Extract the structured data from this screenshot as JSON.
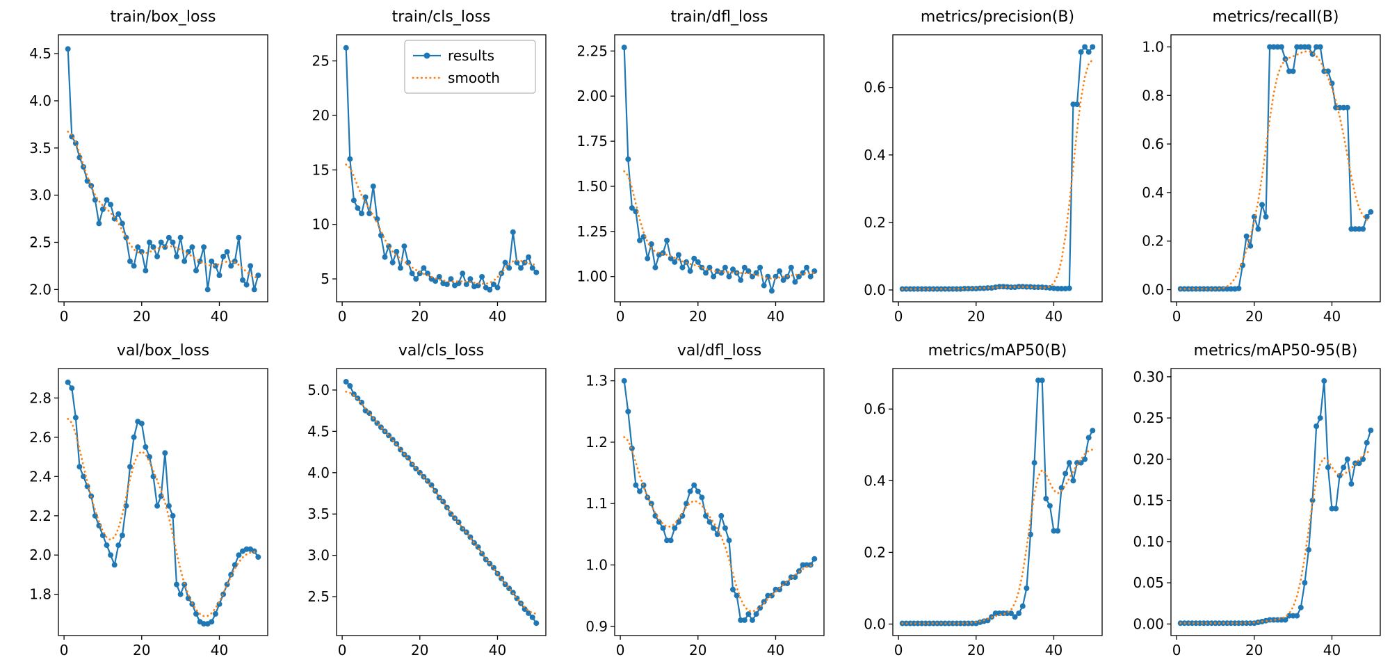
{
  "figure": {
    "background": "#ffffff",
    "rows": 2,
    "columns": 5
  },
  "colors": {
    "results": "#1f77b4",
    "smooth": "#ff7f0e",
    "axis": "#000000",
    "legend_border": "#b3b3b3"
  },
  "legend": {
    "results_label": "results",
    "smooth_label": "smooth"
  },
  "chart_data": [
    {
      "type": "line",
      "title": "train/box_loss",
      "legend": false,
      "x_start": 1,
      "xlim": [
        -1.45,
        52.45
      ],
      "xticks": [
        0,
        20,
        40
      ],
      "xtick_labels": [
        "0",
        "20",
        "40"
      ],
      "ylim": [
        1.87,
        4.7
      ],
      "yticks": [
        2.0,
        2.5,
        3.0,
        3.5,
        4.0,
        4.5
      ],
      "ytick_labels": [
        "2.0",
        "2.5",
        "3.0",
        "3.5",
        "4.0",
        "4.5"
      ],
      "series": [
        {
          "name": "results",
          "style": "line-marker",
          "values": [
            4.55,
            3.62,
            3.55,
            3.4,
            3.3,
            3.15,
            3.1,
            2.95,
            2.7,
            2.85,
            2.95,
            2.9,
            2.75,
            2.8,
            2.7,
            2.55,
            2.3,
            2.25,
            2.45,
            2.4,
            2.2,
            2.5,
            2.45,
            2.35,
            2.5,
            2.45,
            2.55,
            2.5,
            2.35,
            2.55,
            2.3,
            2.4,
            2.45,
            2.2,
            2.3,
            2.45,
            2.0,
            2.3,
            2.25,
            2.15,
            2.35,
            2.4,
            2.25,
            2.3,
            2.55,
            2.1,
            2.05,
            2.25,
            2.0,
            2.15
          ]
        },
        {
          "name": "smooth",
          "style": "dotted",
          "derived_from": "results"
        }
      ]
    },
    {
      "type": "line",
      "title": "train/cls_loss",
      "legend": true,
      "x_start": 1,
      "xlim": [
        -1.45,
        52.45
      ],
      "xticks": [
        0,
        20,
        40
      ],
      "xtick_labels": [
        "0",
        "20",
        "40"
      ],
      "ylim": [
        2.9,
        27.4
      ],
      "yticks": [
        5,
        10,
        15,
        20,
        25
      ],
      "ytick_labels": [
        "5",
        "10",
        "15",
        "20",
        "25"
      ],
      "series": [
        {
          "name": "results",
          "style": "line-marker",
          "values": [
            26.2,
            16.0,
            12.2,
            11.5,
            11.0,
            12.5,
            11.0,
            13.5,
            10.5,
            9.0,
            7.0,
            8.0,
            6.5,
            7.5,
            6.0,
            8.0,
            6.5,
            5.5,
            5.0,
            5.5,
            6.0,
            5.5,
            5.0,
            4.8,
            5.2,
            4.6,
            4.5,
            5.0,
            4.4,
            4.6,
            5.5,
            4.5,
            5.0,
            4.3,
            4.4,
            5.2,
            4.2,
            4.0,
            4.5,
            4.2,
            5.5,
            6.5,
            6.0,
            9.3,
            6.5,
            6.0,
            6.5,
            7.0,
            6.0,
            5.6
          ]
        },
        {
          "name": "smooth",
          "style": "dotted",
          "derived_from": "results"
        }
      ]
    },
    {
      "type": "line",
      "title": "train/dfl_loss",
      "legend": false,
      "x_start": 1,
      "xlim": [
        -1.45,
        52.45
      ],
      "xticks": [
        0,
        20,
        40
      ],
      "xtick_labels": [
        "0",
        "20",
        "40"
      ],
      "ylim": [
        0.86,
        2.34
      ],
      "yticks": [
        1.0,
        1.25,
        1.5,
        1.75,
        2.0,
        2.25
      ],
      "ytick_labels": [
        "1.00",
        "1.25",
        "1.50",
        "1.75",
        "2.00",
        "2.25"
      ],
      "series": [
        {
          "name": "results",
          "style": "line-marker",
          "values": [
            2.27,
            1.65,
            1.38,
            1.36,
            1.2,
            1.22,
            1.1,
            1.18,
            1.05,
            1.12,
            1.13,
            1.2,
            1.1,
            1.08,
            1.12,
            1.05,
            1.08,
            1.03,
            1.1,
            1.08,
            1.05,
            1.02,
            1.05,
            1.0,
            1.03,
            1.02,
            1.05,
            1.0,
            1.04,
            1.02,
            0.98,
            1.05,
            1.03,
            1.0,
            1.02,
            1.05,
            0.95,
            1.0,
            0.92,
            1.0,
            1.03,
            0.98,
            1.0,
            1.05,
            0.97,
            1.0,
            1.02,
            1.05,
            1.0,
            1.03
          ]
        },
        {
          "name": "smooth",
          "style": "dotted",
          "derived_from": "results"
        }
      ]
    },
    {
      "type": "line",
      "title": "metrics/precision(B)",
      "legend": false,
      "x_start": 1,
      "xlim": [
        -1.45,
        52.45
      ],
      "xticks": [
        0,
        20,
        40
      ],
      "xtick_labels": [
        "0",
        "20",
        "40"
      ],
      "ylim": [
        -0.035,
        0.756
      ],
      "yticks": [
        0.0,
        0.2,
        0.4,
        0.6
      ],
      "ytick_labels": [
        "0.0",
        "0.2",
        "0.4",
        "0.6"
      ],
      "series": [
        {
          "name": "results",
          "style": "line-marker",
          "values": [
            0.003,
            0.003,
            0.003,
            0.003,
            0.003,
            0.003,
            0.003,
            0.003,
            0.003,
            0.003,
            0.003,
            0.003,
            0.003,
            0.003,
            0.003,
            0.003,
            0.004,
            0.004,
            0.004,
            0.004,
            0.005,
            0.005,
            0.006,
            0.006,
            0.008,
            0.01,
            0.01,
            0.009,
            0.008,
            0.008,
            0.01,
            0.01,
            0.009,
            0.009,
            0.008,
            0.008,
            0.008,
            0.007,
            0.006,
            0.005,
            0.004,
            0.004,
            0.004,
            0.005,
            0.55,
            0.55,
            0.705,
            0.72,
            0.705,
            0.72
          ]
        },
        {
          "name": "smooth",
          "style": "dotted",
          "derived_from": "results"
        }
      ]
    },
    {
      "type": "line",
      "title": "metrics/recall(B)",
      "legend": false,
      "x_start": 1,
      "xlim": [
        -1.45,
        52.45
      ],
      "xticks": [
        0,
        20,
        40
      ],
      "xtick_labels": [
        "0",
        "20",
        "40"
      ],
      "ylim": [
        -0.05,
        1.05
      ],
      "yticks": [
        0.0,
        0.2,
        0.4,
        0.6,
        0.8,
        1.0
      ],
      "ytick_labels": [
        "0.0",
        "0.2",
        "0.4",
        "0.6",
        "0.8",
        "1.0"
      ],
      "series": [
        {
          "name": "results",
          "style": "line-marker",
          "values": [
            0.003,
            0.003,
            0.003,
            0.003,
            0.003,
            0.003,
            0.003,
            0.003,
            0.003,
            0.003,
            0.003,
            0.003,
            0.003,
            0.003,
            0.003,
            0.005,
            0.1,
            0.22,
            0.18,
            0.3,
            0.25,
            0.35,
            0.3,
            1.0,
            1.0,
            1.0,
            1.0,
            0.95,
            0.9,
            0.9,
            1.0,
            1.0,
            1.0,
            1.0,
            0.97,
            1.0,
            1.0,
            0.9,
            0.9,
            0.85,
            0.75,
            0.75,
            0.75,
            0.75,
            0.25,
            0.25,
            0.25,
            0.25,
            0.3,
            0.32
          ]
        },
        {
          "name": "smooth",
          "style": "dotted",
          "derived_from": "results"
        }
      ]
    },
    {
      "type": "line",
      "title": "val/box_loss",
      "legend": false,
      "x_start": 1,
      "xlim": [
        -1.45,
        52.45
      ],
      "xticks": [
        0,
        20,
        40
      ],
      "xtick_labels": [
        "0",
        "20",
        "40"
      ],
      "ylim": [
        1.59,
        2.95
      ],
      "yticks": [
        1.8,
        2.0,
        2.2,
        2.4,
        2.6,
        2.8
      ],
      "ytick_labels": [
        "1.8",
        "2.0",
        "2.2",
        "2.4",
        "2.6",
        "2.8"
      ],
      "series": [
        {
          "name": "results",
          "style": "line-marker",
          "values": [
            2.88,
            2.85,
            2.7,
            2.45,
            2.4,
            2.35,
            2.3,
            2.2,
            2.15,
            2.1,
            2.05,
            2.0,
            1.95,
            2.05,
            2.1,
            2.25,
            2.45,
            2.6,
            2.68,
            2.67,
            2.55,
            2.5,
            2.4,
            2.25,
            2.3,
            2.52,
            2.25,
            2.2,
            1.85,
            1.8,
            1.85,
            1.78,
            1.75,
            1.7,
            1.66,
            1.65,
            1.65,
            1.66,
            1.7,
            1.75,
            1.8,
            1.85,
            1.9,
            1.95,
            2.0,
            2.02,
            2.03,
            2.03,
            2.02,
            1.99
          ]
        },
        {
          "name": "smooth",
          "style": "dotted",
          "derived_from": "results"
        }
      ]
    },
    {
      "type": "line",
      "title": "val/cls_loss",
      "legend": false,
      "x_start": 1,
      "xlim": [
        -1.45,
        52.45
      ],
      "xticks": [
        0,
        20,
        40
      ],
      "xtick_labels": [
        "0",
        "20",
        "40"
      ],
      "ylim": [
        2.03,
        5.26
      ],
      "yticks": [
        2.5,
        3.0,
        3.5,
        4.0,
        4.5,
        5.0
      ],
      "ytick_labels": [
        "2.5",
        "3.0",
        "3.5",
        "4.0",
        "4.5",
        "5.0"
      ],
      "series": [
        {
          "name": "results",
          "style": "line-marker",
          "values": [
            5.1,
            5.05,
            4.95,
            4.9,
            4.85,
            4.75,
            4.72,
            4.65,
            4.6,
            4.55,
            4.5,
            4.45,
            4.4,
            4.35,
            4.28,
            4.22,
            4.18,
            4.1,
            4.05,
            4.0,
            3.95,
            3.9,
            3.85,
            3.78,
            3.7,
            3.65,
            3.58,
            3.5,
            3.45,
            3.4,
            3.32,
            3.28,
            3.22,
            3.15,
            3.1,
            3.02,
            2.95,
            2.9,
            2.85,
            2.78,
            2.72,
            2.65,
            2.6,
            2.55,
            2.48,
            2.42,
            2.35,
            2.3,
            2.25,
            2.18
          ]
        },
        {
          "name": "smooth",
          "style": "dotted",
          "derived_from": "results"
        }
      ]
    },
    {
      "type": "line",
      "title": "val/dfl_loss",
      "legend": false,
      "x_start": 1,
      "xlim": [
        -1.45,
        52.45
      ],
      "xticks": [
        0,
        20,
        40
      ],
      "xtick_labels": [
        "0",
        "20",
        "40"
      ],
      "ylim": [
        0.885,
        1.32
      ],
      "yticks": [
        0.9,
        1.0,
        1.1,
        1.2,
        1.3
      ],
      "ytick_labels": [
        "0.9",
        "1.0",
        "1.1",
        "1.2",
        "1.3"
      ],
      "series": [
        {
          "name": "results",
          "style": "line-marker",
          "values": [
            1.3,
            1.25,
            1.19,
            1.13,
            1.12,
            1.13,
            1.11,
            1.1,
            1.08,
            1.07,
            1.06,
            1.04,
            1.04,
            1.06,
            1.07,
            1.08,
            1.1,
            1.12,
            1.13,
            1.12,
            1.11,
            1.08,
            1.07,
            1.06,
            1.05,
            1.08,
            1.06,
            1.04,
            0.96,
            0.95,
            0.91,
            0.91,
            0.92,
            0.91,
            0.92,
            0.93,
            0.94,
            0.95,
            0.95,
            0.96,
            0.96,
            0.97,
            0.97,
            0.98,
            0.98,
            0.99,
            1.0,
            1.0,
            1.0,
            1.01
          ]
        },
        {
          "name": "smooth",
          "style": "dotted",
          "derived_from": "results"
        }
      ]
    },
    {
      "type": "line",
      "title": "metrics/mAP50(B)",
      "legend": false,
      "x_start": 1,
      "xlim": [
        -1.45,
        52.45
      ],
      "xticks": [
        0,
        20,
        40
      ],
      "xtick_labels": [
        "0",
        "20",
        "40"
      ],
      "ylim": [
        -0.032,
        0.713
      ],
      "yticks": [
        0.0,
        0.2,
        0.4,
        0.6
      ],
      "ytick_labels": [
        "0.0",
        "0.2",
        "0.4",
        "0.6"
      ],
      "series": [
        {
          "name": "results",
          "style": "line-marker",
          "values": [
            0.002,
            0.002,
            0.002,
            0.002,
            0.002,
            0.002,
            0.002,
            0.002,
            0.002,
            0.002,
            0.002,
            0.002,
            0.002,
            0.002,
            0.002,
            0.002,
            0.002,
            0.002,
            0.002,
            0.002,
            0.005,
            0.008,
            0.01,
            0.02,
            0.03,
            0.03,
            0.03,
            0.03,
            0.03,
            0.02,
            0.03,
            0.05,
            0.1,
            0.25,
            0.45,
            0.68,
            0.68,
            0.35,
            0.33,
            0.26,
            0.26,
            0.38,
            0.42,
            0.45,
            0.4,
            0.45,
            0.45,
            0.46,
            0.52,
            0.54
          ]
        },
        {
          "name": "smooth",
          "style": "dotted",
          "derived_from": "results"
        }
      ]
    },
    {
      "type": "line",
      "title": "metrics/mAP50-95(B)",
      "legend": false,
      "x_start": 1,
      "xlim": [
        -1.45,
        52.45
      ],
      "xticks": [
        0,
        20,
        40
      ],
      "xtick_labels": [
        "0",
        "20",
        "40"
      ],
      "ylim": [
        -0.014,
        0.31
      ],
      "yticks": [
        0.0,
        0.05,
        0.1,
        0.15,
        0.2,
        0.25,
        0.3
      ],
      "ytick_labels": [
        "0.00",
        "0.05",
        "0.10",
        "0.15",
        "0.20",
        "0.25",
        "0.30"
      ],
      "series": [
        {
          "name": "results",
          "style": "line-marker",
          "values": [
            0.001,
            0.001,
            0.001,
            0.001,
            0.001,
            0.001,
            0.001,
            0.001,
            0.001,
            0.001,
            0.001,
            0.001,
            0.001,
            0.001,
            0.001,
            0.001,
            0.001,
            0.001,
            0.001,
            0.001,
            0.002,
            0.003,
            0.004,
            0.005,
            0.005,
            0.005,
            0.005,
            0.005,
            0.01,
            0.01,
            0.01,
            0.02,
            0.05,
            0.09,
            0.15,
            0.24,
            0.25,
            0.295,
            0.19,
            0.14,
            0.14,
            0.18,
            0.19,
            0.2,
            0.17,
            0.195,
            0.195,
            0.2,
            0.22,
            0.235
          ]
        },
        {
          "name": "smooth",
          "style": "dotted",
          "derived_from": "results"
        }
      ]
    }
  ]
}
